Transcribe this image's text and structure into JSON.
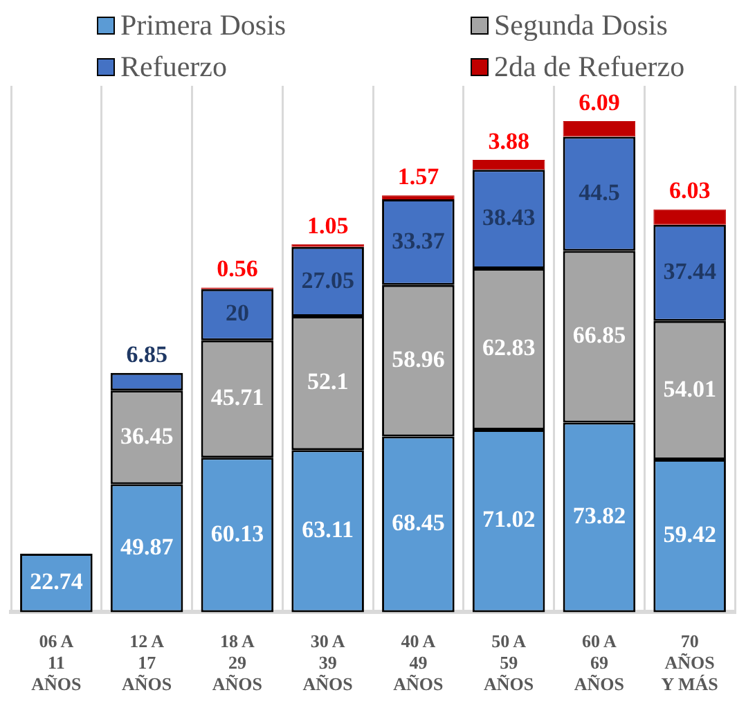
{
  "chart_data": {
    "type": "bar",
    "stacked": true,
    "data_labels": true,
    "legend": "top",
    "grid": "x",
    "ylim": [
      0,
      205
    ],
    "categories": [
      "06 A\n11\nAÑOS",
      "12 A\n17\nAÑOS",
      "18 A\n29\nAÑOS",
      "30 A\n39\nAÑOS",
      "40 A\n49\nAÑOS",
      "50 A\n59\nAÑOS",
      "60 A\n69\nAÑOS",
      "70\nAÑOS\nY MÁS"
    ],
    "series": [
      {
        "name": "Primera Dosis",
        "color": "#5b9bd5",
        "values": [
          22.74,
          49.87,
          60.13,
          63.11,
          68.45,
          71.02,
          73.82,
          59.42
        ]
      },
      {
        "name": "Segunda Dosis",
        "color": "#a5a5a5",
        "values": [
          null,
          36.45,
          45.71,
          52.1,
          58.96,
          62.83,
          66.85,
          54.01
        ]
      },
      {
        "name": "Refuerzo",
        "color": "#4472c4",
        "values": [
          null,
          6.85,
          20,
          27.05,
          33.37,
          38.43,
          44.5,
          37.44
        ]
      },
      {
        "name": "2da de Refuerzo",
        "color": "#c00000",
        "values": [
          null,
          null,
          0.56,
          1.05,
          1.57,
          3.88,
          6.09,
          6.03
        ]
      }
    ]
  }
}
